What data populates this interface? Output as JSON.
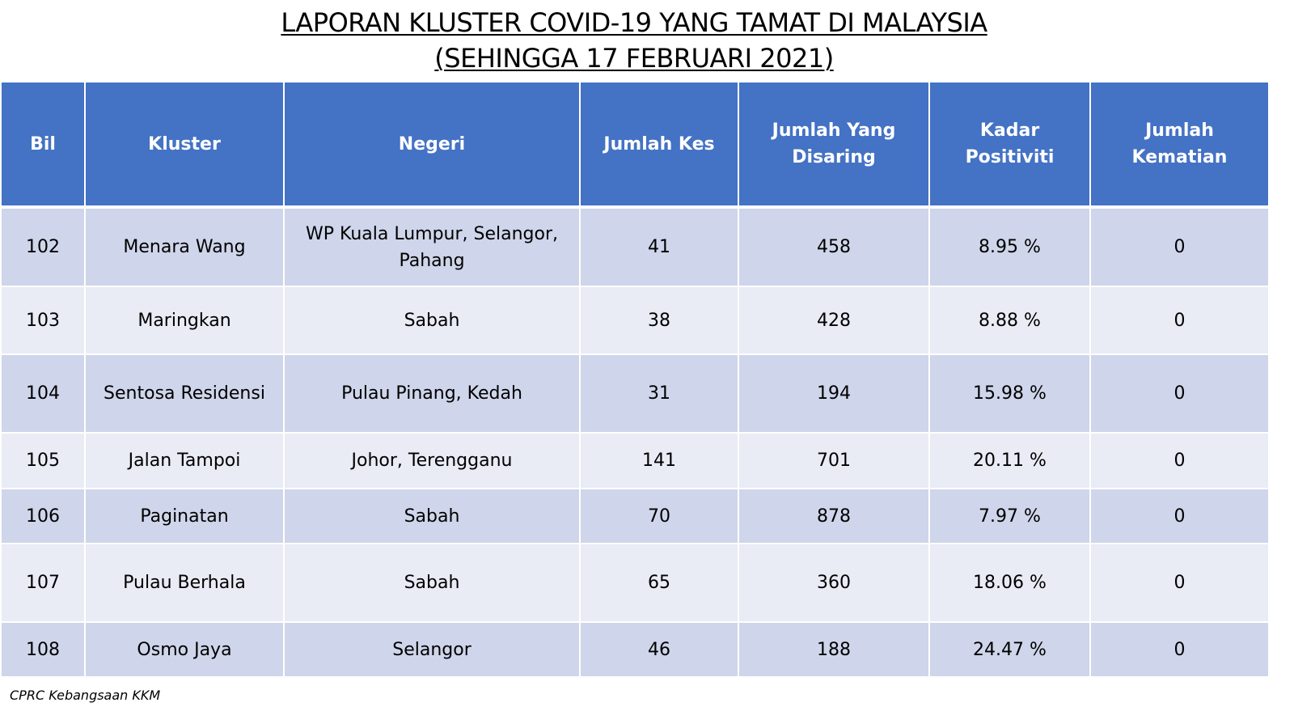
{
  "title": {
    "line1": "LAPORAN KLUSTER COVID-19 YANG TAMAT DI MALAYSIA",
    "line2": "(SEHINGGA  17 FEBRUARI 2021)"
  },
  "table": {
    "headers": {
      "bil": "Bil",
      "kluster": "Kluster",
      "negeri": "Negeri",
      "jumlah_kes": "Jumlah Kes",
      "jumlah_disaring": "Jumlah Yang Disaring",
      "kadar_positiviti": "Kadar Positiviti",
      "jumlah_kematian": "Jumlah Kematian"
    },
    "rows": [
      {
        "bil": "102",
        "kluster": "Menara Wang",
        "negeri": "WP Kuala Lumpur, Selangor, Pahang",
        "kes": "41",
        "disaring": "458",
        "positiviti": "8.95 %",
        "kematian": "0"
      },
      {
        "bil": "103",
        "kluster": "Maringkan",
        "negeri": "Sabah",
        "kes": "38",
        "disaring": "428",
        "positiviti": "8.88 %",
        "kematian": "0"
      },
      {
        "bil": "104",
        "kluster": "Sentosa Residensi",
        "negeri": "Pulau Pinang, Kedah",
        "kes": "31",
        "disaring": "194",
        "positiviti": "15.98 %",
        "kematian": "0"
      },
      {
        "bil": "105",
        "kluster": "Jalan Tampoi",
        "negeri": "Johor, Terengganu",
        "kes": "141",
        "disaring": "701",
        "positiviti": "20.11 %",
        "kematian": "0"
      },
      {
        "bil": "106",
        "kluster": "Paginatan",
        "negeri": "Sabah",
        "kes": "70",
        "disaring": "878",
        "positiviti": "7.97 %",
        "kematian": "0"
      },
      {
        "bil": "107",
        "kluster": "Pulau Berhala",
        "negeri": "Sabah",
        "kes": "65",
        "disaring": "360",
        "positiviti": "18.06 %",
        "kematian": "0"
      },
      {
        "bil": "108",
        "kluster": "Osmo Jaya",
        "negeri": "Selangor",
        "kes": "46",
        "disaring": "188",
        "positiviti": "24.47 %",
        "kematian": "0"
      }
    ]
  },
  "source": "CPRC Kebangsaan KKM",
  "colors": {
    "header_bg": "#4472c4",
    "row_dark": "#cfd5ea",
    "row_light": "#e9ebf5"
  }
}
